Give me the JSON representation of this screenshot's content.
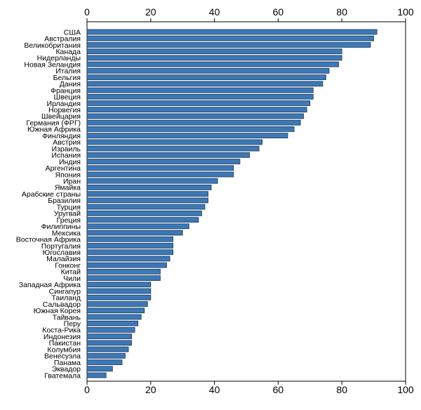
{
  "chart_data": {
    "type": "bar",
    "orientation": "horizontal",
    "bar_color": "#3d78b5",
    "bar_edge_color": "#1a3a5c",
    "xlim": [
      0,
      100
    ],
    "x_ticks": [
      0,
      20,
      40,
      60,
      80,
      100
    ],
    "x_axis_position": "top and bottom",
    "grid": false,
    "categories": [
      "США",
      "Австралия",
      "Великобритания",
      "Канада",
      "Нидерланды",
      "Новая Зеландия",
      "Италия",
      "Бельгия",
      "Дания",
      "Франция",
      "Швеция",
      "Ирландия",
      "Норвегия",
      "Швейцария",
      "Германия (ФРГ)",
      "Южная Африка",
      "Финляндия",
      "Австрия",
      "Израиль",
      "Испания",
      "Индия",
      "Аргентина",
      "Япония",
      "Иран",
      "Ямайка",
      "Арабские страны",
      "Бразилия",
      "Турция",
      "Уругвай",
      "Греция",
      "Филиппины",
      "Мексика",
      "Восточная Африка",
      "Португалия",
      "Югославия",
      "Малайзия",
      "Гонконг",
      "Китай",
      "Чили",
      "Западная Африка",
      "Сингапур",
      "Таиланд",
      "Сальвадор",
      "Южная Корея",
      "Тайвань",
      "Перу",
      "Коста-Рика",
      "Индонезия",
      "Пакистан",
      "Колумбия",
      "Венесуэла",
      "Панама",
      "Эквадор",
      "Гватемала"
    ],
    "values": [
      91,
      90,
      89,
      80,
      80,
      79,
      76,
      75,
      74,
      71,
      71,
      70,
      69,
      68,
      67,
      65,
      63,
      55,
      54,
      51,
      48,
      46,
      46,
      41,
      39,
      38,
      38,
      37,
      36,
      35,
      32,
      30,
      27,
      27,
      27,
      26,
      25,
      23,
      23,
      20,
      20,
      20,
      19,
      18,
      17,
      16,
      15,
      14,
      14,
      13,
      12,
      11,
      8,
      6
    ]
  }
}
